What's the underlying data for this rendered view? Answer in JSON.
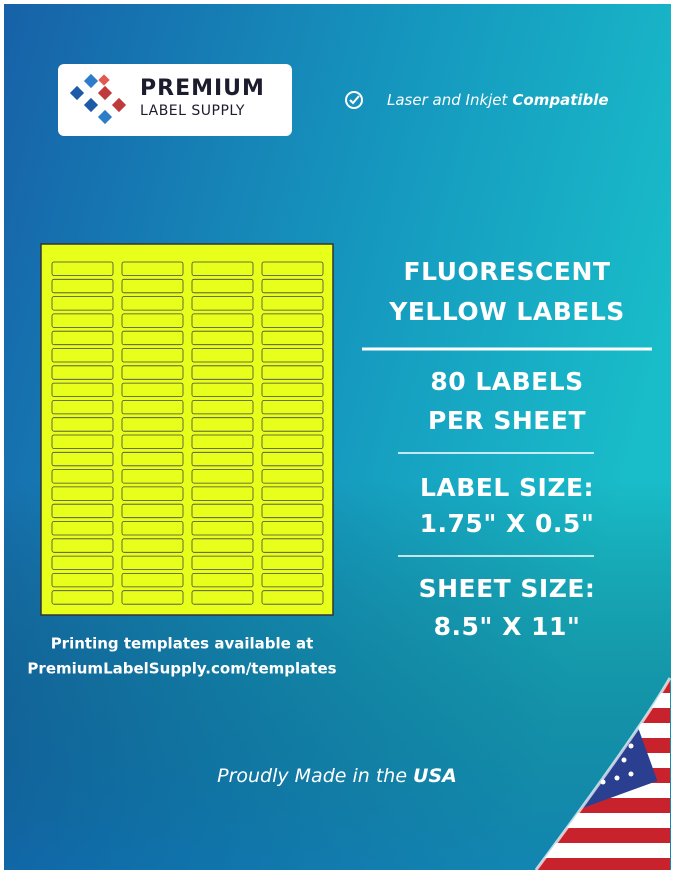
{
  "logo": {
    "brand": "PREMIUM",
    "sub": "LABEL SUPPLY"
  },
  "badge": {
    "text": "Laser and Inkjet",
    "emphasis": "Compatible"
  },
  "specs": {
    "title": [
      "FLUORESCENT",
      "YELLOW LABELS"
    ],
    "count": [
      "80 LABELS",
      "PER SHEET"
    ],
    "label_size": [
      "LABEL SIZE:",
      "1.75\" X 0.5\""
    ],
    "sheet_size": [
      "SHEET SIZE:",
      "8.5\" X 11\""
    ]
  },
  "templates": [
    "Printing templates available at",
    "PremiumLabelSupply.com/templates"
  ],
  "footer": {
    "text": "Proudly Made in the",
    "emphasis": "USA"
  }
}
